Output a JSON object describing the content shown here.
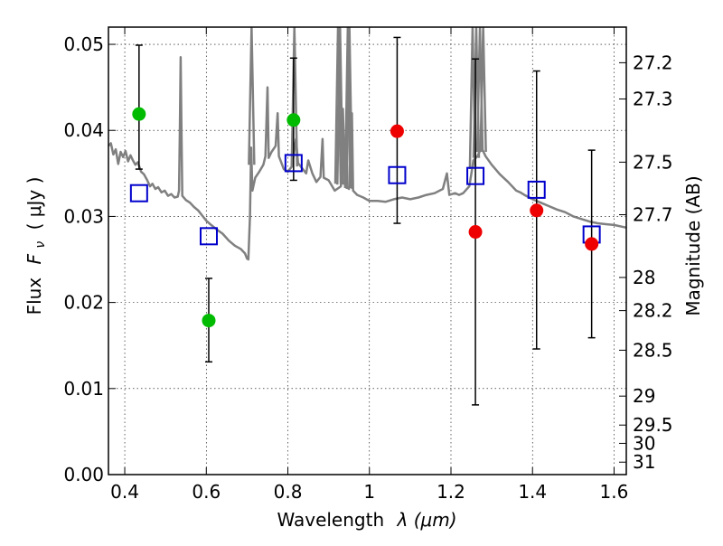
{
  "chart_data": {
    "type": "scatter",
    "xlabel": "Wavelength",
    "xlabel_symbol": "λ (μm)",
    "ylabel": "Flux",
    "ylabel_symbol": "F",
    "ylabel_sub": "ν",
    "ylabel_unit": "( μJy )",
    "right_label": "Magnitude (AB)",
    "xlim": [
      0.36,
      1.63
    ],
    "ylim": [
      0.0,
      0.052
    ],
    "x_ticks": [
      0.4,
      0.6,
      0.8,
      1.0,
      1.2,
      1.4,
      1.6
    ],
    "x_tick_labels": [
      "0.4",
      "0.6",
      "0.8",
      "1",
      "1.2",
      "1.4",
      "1.6"
    ],
    "y_ticks": [
      0.0,
      0.01,
      0.02,
      0.03,
      0.04,
      0.05
    ],
    "y_tick_labels": [
      "0.00",
      "0.01",
      "0.02",
      "0.03",
      "0.04",
      "0.05"
    ],
    "mag_ticks": [
      {
        "label": "27.2",
        "mag": 27.2
      },
      {
        "label": "27.3",
        "mag": 27.3
      },
      {
        "label": "27.5",
        "mag": 27.5
      },
      {
        "label": "27.7",
        "mag": 27.7
      },
      {
        "label": "28",
        "mag": 28.0
      },
      {
        "label": "28.2",
        "mag": 28.2
      },
      {
        "label": "28.5",
        "mag": 28.5
      },
      {
        "label": "29",
        "mag": 29.0
      },
      {
        "label": "29.5",
        "mag": 29.5
      },
      {
        "label": "30",
        "mag": 30.0
      },
      {
        "label": "31",
        "mag": 31.0
      }
    ],
    "series": [
      {
        "name": "green observed",
        "color": "#00bb00",
        "marker": "circle",
        "points": [
          {
            "x": 0.435,
            "y": 0.0419,
            "lo": 0.0355,
            "hi": 0.0499
          },
          {
            "x": 0.606,
            "y": 0.0179,
            "lo": 0.0131,
            "hi": 0.0228
          },
          {
            "x": 0.814,
            "y": 0.0412,
            "lo": 0.0342,
            "hi": 0.0484
          }
        ]
      },
      {
        "name": "red observed",
        "color": "#ee0000",
        "marker": "circle",
        "points": [
          {
            "x": 1.068,
            "y": 0.0399,
            "lo": 0.0292,
            "hi": 0.0508
          },
          {
            "x": 1.26,
            "y": 0.0282,
            "lo": 0.0081,
            "hi": 0.0483
          },
          {
            "x": 1.41,
            "y": 0.0307,
            "lo": 0.0146,
            "hi": 0.0469
          },
          {
            "x": 1.545,
            "y": 0.0268,
            "lo": 0.0159,
            "hi": 0.0377
          }
        ]
      },
      {
        "name": "model photometry",
        "color": "#0000cc",
        "marker": "open-square",
        "points": [
          {
            "x": 0.435,
            "y": 0.0327
          },
          {
            "x": 0.606,
            "y": 0.0277
          },
          {
            "x": 0.814,
            "y": 0.0362
          },
          {
            "x": 1.068,
            "y": 0.0348
          },
          {
            "x": 1.26,
            "y": 0.0347
          },
          {
            "x": 1.41,
            "y": 0.0331
          },
          {
            "x": 1.545,
            "y": 0.0279
          }
        ]
      },
      {
        "name": "model spectrum",
        "color": "#808080",
        "marker": "line",
        "points": [
          [
            0.36,
            0.0382
          ],
          [
            0.366,
            0.0385
          ],
          [
            0.372,
            0.0372
          ],
          [
            0.378,
            0.0378
          ],
          [
            0.384,
            0.0361
          ],
          [
            0.39,
            0.0375
          ],
          [
            0.396,
            0.0369
          ],
          [
            0.402,
            0.0376
          ],
          [
            0.408,
            0.0364
          ],
          [
            0.414,
            0.0371
          ],
          [
            0.42,
            0.0365
          ],
          [
            0.426,
            0.036
          ],
          [
            0.432,
            0.0363
          ],
          [
            0.44,
            0.0352
          ],
          [
            0.447,
            0.0349
          ],
          [
            0.455,
            0.0342
          ],
          [
            0.462,
            0.0335
          ],
          [
            0.468,
            0.0338
          ],
          [
            0.475,
            0.0332
          ],
          [
            0.482,
            0.0334
          ],
          [
            0.49,
            0.0328
          ],
          [
            0.498,
            0.033
          ],
          [
            0.506,
            0.0324
          ],
          [
            0.514,
            0.0326
          ],
          [
            0.522,
            0.0322
          ],
          [
            0.53,
            0.0323
          ],
          [
            0.533,
            0.033
          ],
          [
            0.535,
            0.04
          ],
          [
            0.537,
            0.0485
          ],
          [
            0.539,
            0.04
          ],
          [
            0.541,
            0.0324
          ],
          [
            0.55,
            0.0319
          ],
          [
            0.56,
            0.0316
          ],
          [
            0.57,
            0.0311
          ],
          [
            0.58,
            0.0307
          ],
          [
            0.59,
            0.0301
          ],
          [
            0.6,
            0.0295
          ],
          [
            0.612,
            0.029
          ],
          [
            0.625,
            0.0285
          ],
          [
            0.64,
            0.028
          ],
          [
            0.655,
            0.0272
          ],
          [
            0.67,
            0.0266
          ],
          [
            0.685,
            0.0262
          ],
          [
            0.695,
            0.0257
          ],
          [
            0.7,
            0.0251
          ],
          [
            0.703,
            0.025
          ],
          [
            0.707,
            0.03
          ],
          [
            0.71,
            0.038
          ],
          [
            0.713,
            0.033
          ],
          [
            0.72,
            0.0345
          ],
          [
            0.73,
            0.0352
          ],
          [
            0.74,
            0.036
          ],
          [
            0.745,
            0.037
          ],
          [
            0.75,
            0.045
          ],
          [
            0.753,
            0.0368
          ],
          [
            0.76,
            0.0375
          ],
          [
            0.77,
            0.0382
          ],
          [
            0.775,
            0.042
          ],
          [
            0.778,
            0.037
          ],
          [
            0.79,
            0.0355
          ],
          [
            0.8,
            0.0352
          ],
          [
            0.81,
            0.0358
          ],
          [
            0.82,
            0.039
          ],
          [
            0.825,
            0.0362
          ],
          [
            0.835,
            0.0356
          ],
          [
            0.845,
            0.035
          ],
          [
            0.85,
            0.0365
          ],
          [
            0.86,
            0.035
          ],
          [
            0.87,
            0.034
          ],
          [
            0.88,
            0.0346
          ],
          [
            0.885,
            0.039
          ],
          [
            0.888,
            0.0345
          ],
          [
            0.9,
            0.0342
          ],
          [
            0.915,
            0.033
          ],
          [
            0.93,
            0.0335
          ],
          [
            0.935,
            0.0425
          ],
          [
            0.94,
            0.0336
          ],
          [
            0.95,
            0.0332
          ],
          [
            0.957,
            0.042
          ],
          [
            0.96,
            0.033
          ],
          [
            0.97,
            0.0325
          ],
          [
            0.985,
            0.0322
          ],
          [
            1.0,
            0.0318
          ],
          [
            1.02,
            0.0318
          ],
          [
            1.04,
            0.0317
          ],
          [
            1.06,
            0.032
          ],
          [
            1.08,
            0.0322
          ],
          [
            1.1,
            0.032
          ],
          [
            1.12,
            0.0322
          ],
          [
            1.14,
            0.0325
          ],
          [
            1.16,
            0.0327
          ],
          [
            1.18,
            0.0332
          ],
          [
            1.19,
            0.035
          ],
          [
            1.196,
            0.0325
          ],
          [
            1.21,
            0.0327
          ],
          [
            1.22,
            0.0325
          ],
          [
            1.23,
            0.0327
          ],
          [
            1.245,
            0.0335
          ],
          [
            1.25,
            0.035
          ],
          [
            1.255,
            0.0365
          ],
          [
            1.265,
            0.037
          ],
          [
            1.275,
            0.038
          ],
          [
            1.285,
            0.037
          ],
          [
            1.3,
            0.036
          ],
          [
            1.32,
            0.0349
          ],
          [
            1.34,
            0.034
          ],
          [
            1.36,
            0.033
          ],
          [
            1.37,
            0.0328
          ],
          [
            1.38,
            0.0325
          ],
          [
            1.4,
            0.032
          ],
          [
            1.42,
            0.0316
          ],
          [
            1.44,
            0.0312
          ],
          [
            1.46,
            0.0308
          ],
          [
            1.48,
            0.0305
          ],
          [
            1.5,
            0.03
          ],
          [
            1.52,
            0.0297
          ],
          [
            1.54,
            0.0294
          ],
          [
            1.56,
            0.0292
          ],
          [
            1.58,
            0.0291
          ],
          [
            1.6,
            0.029
          ],
          [
            1.63,
            0.0287
          ]
        ],
        "spikes": [
          {
            "x": 0.711,
            "from": 0.036,
            "peak": 0.0525
          },
          {
            "x": 0.816,
            "from": 0.0358,
            "peak": 0.0525
          },
          {
            "x": 0.923,
            "from": 0.0338,
            "peak": 0.0525
          },
          {
            "x": 0.928,
            "from": 0.0337,
            "peak": 0.0525
          },
          {
            "x": 0.947,
            "from": 0.0333,
            "peak": 0.0525
          },
          {
            "x": 0.951,
            "from": 0.0332,
            "peak": 0.0525
          },
          {
            "x": 1.253,
            "from": 0.0355,
            "peak": 0.0525
          },
          {
            "x": 1.262,
            "from": 0.0368,
            "peak": 0.0525
          },
          {
            "x": 1.271,
            "from": 0.0375,
            "peak": 0.0525
          },
          {
            "x": 1.279,
            "from": 0.0375,
            "peak": 0.0525
          }
        ]
      }
    ]
  }
}
